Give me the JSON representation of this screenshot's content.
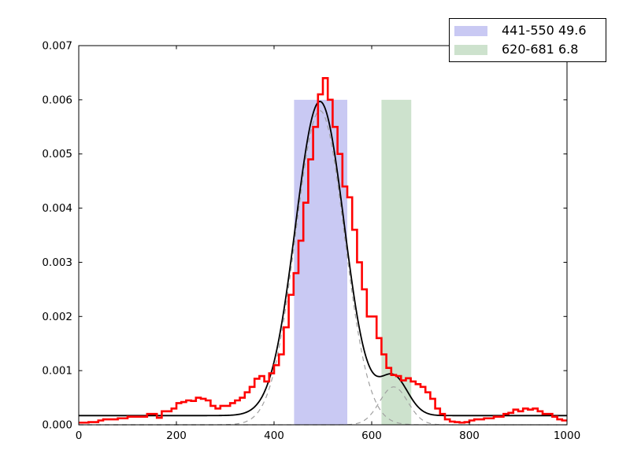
{
  "chart_data": {
    "type": "line",
    "description": "Density histogram with Gaussian mixture fit and two highlighted integration bands",
    "grid": false,
    "xlim": [
      0,
      1000
    ],
    "ylim": [
      0,
      0.007
    ],
    "x_ticks": [
      {
        "value": 0,
        "label": "0"
      },
      {
        "value": 200,
        "label": "200"
      },
      {
        "value": 400,
        "label": "400"
      },
      {
        "value": 600,
        "label": "600"
      },
      {
        "value": 800,
        "label": "800"
      },
      {
        "value": 1000,
        "label": "1000"
      }
    ],
    "y_ticks": [
      {
        "value": 0.0,
        "label": "0.000"
      },
      {
        "value": 0.001,
        "label": "0.001"
      },
      {
        "value": 0.002,
        "label": "0.002"
      },
      {
        "value": 0.003,
        "label": "0.003"
      },
      {
        "value": 0.004,
        "label": "0.004"
      },
      {
        "value": 0.005,
        "label": "0.005"
      },
      {
        "value": 0.006,
        "label": "0.006"
      },
      {
        "value": 0.007,
        "label": "0.007"
      }
    ],
    "bands": [
      {
        "name": "band-441-550",
        "x_start": 441,
        "x_end": 550,
        "y_top": 0.006,
        "color": "#c9c9f3"
      },
      {
        "name": "band-620-681",
        "x_start": 620,
        "x_end": 681,
        "y_top": 0.006,
        "color": "#cde2cd"
      }
    ],
    "fit": {
      "color": "#000000",
      "baseline": 0.00017,
      "components": [
        {
          "center": 494,
          "amplitude": 0.0058,
          "sigma": 50
        },
        {
          "center": 645,
          "amplitude": 0.0007,
          "sigma": 29
        }
      ],
      "component_color": "#a0a0a0",
      "component_dash": [
        6,
        5
      ]
    },
    "histogram": {
      "color": "#ff0000",
      "bin_start": 0,
      "bin_width": 10,
      "values": [
        4e-05,
        4e-05,
        5e-05,
        5e-05,
        8e-05,
        0.0001,
        0.0001,
        0.0001,
        0.00012,
        0.00012,
        0.00015,
        0.00015,
        0.00015,
        0.00015,
        0.0002,
        0.0002,
        0.00013,
        0.00025,
        0.00025,
        0.0003,
        0.0004,
        0.00042,
        0.00045,
        0.00044,
        0.0005,
        0.00048,
        0.00045,
        0.00035,
        0.0003,
        0.00035,
        0.00035,
        0.0004,
        0.00045,
        0.0005,
        0.0006,
        0.0007,
        0.00085,
        0.0009,
        0.0008,
        0.00095,
        0.0011,
        0.0013,
        0.0018,
        0.0024,
        0.0028,
        0.0034,
        0.0041,
        0.0049,
        0.0055,
        0.0061,
        0.0064,
        0.006,
        0.0055,
        0.005,
        0.0044,
        0.0042,
        0.0036,
        0.003,
        0.0025,
        0.002,
        0.002,
        0.0016,
        0.0013,
        0.00105,
        0.00092,
        0.0009,
        0.00082,
        0.00086,
        0.0008,
        0.00075,
        0.0007,
        0.0006,
        0.00048,
        0.0003,
        0.0002,
        0.0001,
        6e-05,
        5e-05,
        4e-05,
        5e-05,
        8e-05,
        0.0001,
        0.0001,
        0.00012,
        0.00012,
        0.00015,
        0.00015,
        0.0002,
        0.00022,
        0.00028,
        0.00025,
        0.0003,
        0.00028,
        0.0003,
        0.00025,
        0.0002,
        0.0002,
        0.00015,
        0.0001,
        8e-05
      ]
    },
    "legend": {
      "position": "upper-right",
      "entries": [
        {
          "label": "441-550 49.6",
          "color": "#c9c9f3"
        },
        {
          "label": "620-681 6.8",
          "color": "#cde2cd"
        }
      ]
    }
  }
}
